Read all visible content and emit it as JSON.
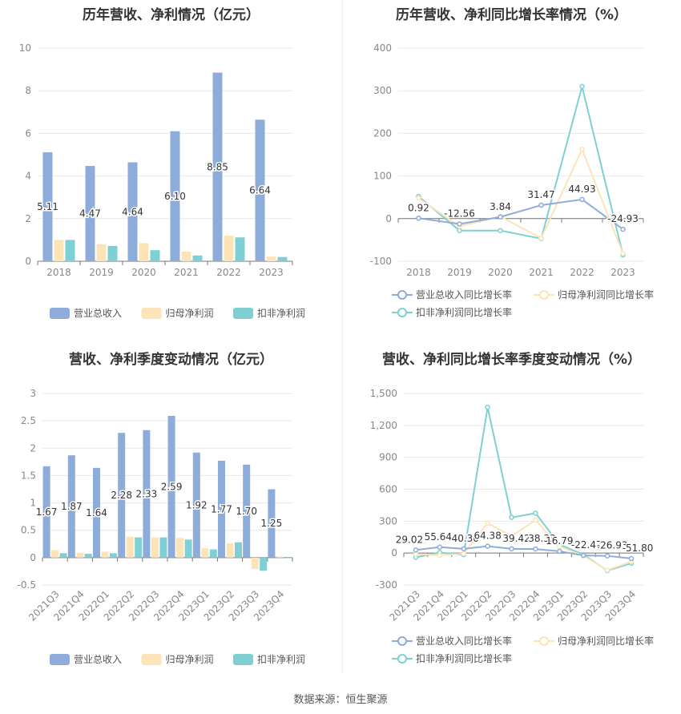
{
  "footer": {
    "source": "数据来源：恒生聚源"
  },
  "colors": {
    "revenue": "#8eacd9",
    "net": "#fde4b6",
    "deducted": "#7fd0d5",
    "grid": "#e8e8e8",
    "axis": "#999999"
  },
  "chart_data": [
    {
      "type": "bar",
      "title": "历年营收、净利情况（亿元）",
      "categories": [
        "2018",
        "2019",
        "2020",
        "2021",
        "2022",
        "2023"
      ],
      "ylim": [
        0,
        10
      ],
      "yticks": [
        "0",
        "2",
        "4",
        "6",
        "8",
        "10"
      ],
      "series": [
        {
          "name": "营业总收入",
          "values": [
            5.11,
            4.47,
            4.64,
            6.1,
            8.85,
            6.64
          ],
          "labels": [
            "5.11",
            "4.47",
            "4.64",
            "6.10",
            "8.85",
            "6.64"
          ]
        },
        {
          "name": "归母净利润",
          "values": [
            1.0,
            0.8,
            0.85,
            0.45,
            1.2,
            0.22
          ]
        },
        {
          "name": "扣非净利润",
          "values": [
            1.0,
            0.72,
            0.52,
            0.27,
            1.12,
            0.2
          ]
        }
      ],
      "legend": "bottom"
    },
    {
      "type": "line",
      "title": "历年营收、净利同比增长率情况（%）",
      "categories": [
        "2018",
        "2019",
        "2020",
        "2021",
        "2022",
        "2023"
      ],
      "ylim": [
        -100,
        400
      ],
      "yticks": [
        "-100",
        "0",
        "100",
        "200",
        "300",
        "400"
      ],
      "series": [
        {
          "name": "营业总收入同比增长率",
          "values": [
            0.92,
            -12.56,
            3.84,
            31.47,
            44.93,
            -24.93
          ],
          "labels": [
            "0.92",
            "-12.56",
            "3.84",
            "31.47",
            "44.93",
            "-24.93"
          ]
        },
        {
          "name": "归母净利润同比增长率",
          "values": [
            48,
            -18,
            5,
            -46,
            163,
            -82
          ]
        },
        {
          "name": "扣非净利润同比增长率",
          "values": [
            52,
            -28,
            -28,
            -47,
            310,
            -85
          ]
        }
      ],
      "legend": "bottom"
    },
    {
      "type": "bar",
      "title": "营收、净利季度变动情况（亿元）",
      "categories": [
        "2021Q3",
        "2021Q4",
        "2022Q1",
        "2022Q2",
        "2022Q3",
        "2022Q4",
        "2023Q1",
        "2023Q2",
        "2023Q3",
        "2023Q4"
      ],
      "ylim": [
        -0.5,
        3
      ],
      "yticks": [
        "-0.5",
        "0",
        "0.5",
        "1",
        "1.5",
        "2",
        "2.5",
        "3"
      ],
      "series": [
        {
          "name": "营业总收入",
          "values": [
            1.67,
            1.87,
            1.64,
            2.28,
            2.33,
            2.59,
            1.92,
            1.77,
            1.7,
            1.25
          ],
          "labels": [
            "1.67",
            "1.87",
            "1.64",
            "2.28",
            "2.33",
            "2.59",
            "1.92",
            "1.77",
            "1.70",
            "1.25"
          ]
        },
        {
          "name": "归母净利润",
          "values": [
            0.14,
            0.09,
            0.11,
            0.38,
            0.37,
            0.36,
            0.17,
            0.26,
            -0.21,
            0.02
          ]
        },
        {
          "name": "扣非净利润",
          "values": [
            0.08,
            0.07,
            0.08,
            0.37,
            0.37,
            0.33,
            0.15,
            0.28,
            -0.24,
            0.0
          ]
        }
      ],
      "legend": "bottom"
    },
    {
      "type": "line",
      "title": "营收、净利同比增长率季度变动情况（%）",
      "categories": [
        "2021Q3",
        "2021Q4",
        "2022Q1",
        "2022Q2",
        "2022Q3",
        "2022Q4",
        "2023Q1",
        "2023Q2",
        "2023Q3",
        "2023Q4"
      ],
      "ylim": [
        -300,
        1500
      ],
      "yticks": [
        "-300",
        "0",
        "300",
        "600",
        "900",
        "1,200",
        "1,500"
      ],
      "series": [
        {
          "name": "营业总收入同比增长率",
          "values": [
            29.02,
            55.64,
            40.3,
            64.38,
            39.42,
            38.33,
            16.79,
            -22.47,
            -26.93,
            -51.8
          ],
          "labels": [
            "29.02",
            "55.64",
            "40.30",
            "64.38",
            "39.42",
            "38.33",
            "16.79",
            "-22.47",
            "-26.93",
            "-51.80"
          ]
        },
        {
          "name": "归母净利润同比增长率",
          "values": [
            -10,
            -20,
            -5,
            280,
            160,
            310,
            60,
            -25,
            -160,
            -80
          ]
        },
        {
          "name": "扣非净利润同比增长率",
          "values": [
            -40,
            5,
            -15,
            1370,
            335,
            375,
            80,
            -15,
            -165,
            -95
          ]
        }
      ],
      "legend": "bottom"
    }
  ]
}
